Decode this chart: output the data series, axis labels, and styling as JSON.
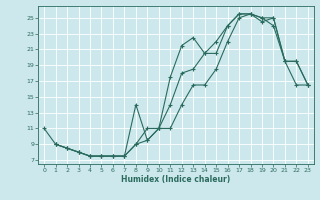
{
  "background_color": "#cde8ec",
  "grid_color": "#ffffff",
  "line_color": "#2a6b5e",
  "marker": "+",
  "xlabel": "Humidex (Indice chaleur)",
  "xlim": [
    -0.5,
    23.5
  ],
  "ylim": [
    6.5,
    26.5
  ],
  "xticks": [
    0,
    1,
    2,
    3,
    4,
    5,
    6,
    7,
    8,
    9,
    10,
    11,
    12,
    13,
    14,
    15,
    16,
    17,
    18,
    19,
    20,
    21,
    22,
    23
  ],
  "yticks": [
    7,
    9,
    11,
    13,
    15,
    17,
    19,
    21,
    23,
    25
  ],
  "line1_x": [
    0,
    1,
    2,
    3,
    4,
    5,
    6,
    7,
    8,
    9,
    10,
    11,
    12,
    13,
    14,
    15,
    16,
    17,
    18,
    19,
    20,
    21,
    22,
    23
  ],
  "line1_y": [
    11,
    9,
    8.5,
    8,
    7.5,
    7.5,
    7.5,
    7.5,
    9,
    11,
    11,
    14,
    18,
    18.5,
    20.5,
    22,
    24,
    25.5,
    25.5,
    25,
    25,
    19.5,
    16.5,
    16.5
  ],
  "line2_x": [
    1,
    2,
    3,
    4,
    5,
    6,
    7,
    8,
    9,
    10,
    11,
    12,
    13,
    14,
    15,
    16,
    17,
    18,
    19,
    20,
    21,
    22,
    23
  ],
  "line2_y": [
    9,
    8.5,
    8,
    7.5,
    7.5,
    7.5,
    7.5,
    14,
    9.5,
    11,
    17.5,
    21.5,
    22.5,
    20.5,
    20.5,
    24,
    25.5,
    25.5,
    24.5,
    25,
    19.5,
    19.5,
    16.5
  ],
  "line3_x": [
    1,
    2,
    3,
    4,
    5,
    6,
    7,
    8,
    9,
    10,
    11,
    12,
    13,
    14,
    15,
    16,
    17,
    18,
    19,
    20,
    21,
    22,
    23
  ],
  "line3_y": [
    9,
    8.5,
    8,
    7.5,
    7.5,
    7.5,
    7.5,
    9,
    9.5,
    11,
    11,
    14,
    16.5,
    16.5,
    18.5,
    22,
    25,
    25.5,
    25,
    24,
    19.5,
    19.5,
    16.5
  ]
}
